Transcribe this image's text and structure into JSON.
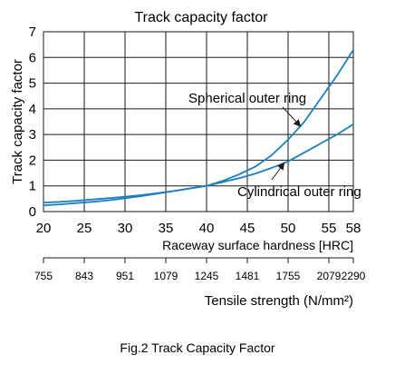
{
  "chart_data": {
    "type": "line",
    "title": "Track capacity factor",
    "ylabel": "Track capacity factor",
    "xlabel": "Raceway surface hardness [HRC]",
    "x2label": "Tensile strength (N/mm²)",
    "xlim": [
      20,
      58
    ],
    "ylim": [
      0,
      7
    ],
    "grid": true,
    "x_ticks": [
      "20",
      "25",
      "30",
      "35",
      "40",
      "45",
      "50",
      "55",
      "58"
    ],
    "x_tick_values": [
      20,
      25,
      30,
      35,
      40,
      45,
      50,
      55,
      58
    ],
    "y_ticks": [
      "0",
      "1",
      "2",
      "3",
      "4",
      "5",
      "6",
      "7"
    ],
    "secondary_axis": {
      "ticks": [
        "755",
        "843",
        "951",
        "1079",
        "1245",
        "1481",
        "1755",
        "2079",
        "2290"
      ],
      "positions_hrc": [
        20,
        25,
        30,
        35,
        40,
        45,
        50,
        55,
        58
      ]
    },
    "series": [
      {
        "name": "Spherical outer ring",
        "color": "#1d7fc0",
        "x": [
          20,
          22,
          24,
          26,
          28,
          30,
          32,
          34,
          36,
          38,
          40,
          42,
          44,
          46,
          48,
          50,
          52,
          54,
          56,
          58
        ],
        "y": [
          0.24,
          0.28,
          0.33,
          0.38,
          0.44,
          0.52,
          0.6,
          0.7,
          0.8,
          0.9,
          1.0,
          1.2,
          1.45,
          1.75,
          2.2,
          2.8,
          3.5,
          4.4,
          5.3,
          6.3
        ]
      },
      {
        "name": "Cylindrical outer ring",
        "color": "#1d7fc0",
        "x": [
          20,
          22,
          24,
          26,
          28,
          30,
          32,
          34,
          36,
          38,
          40,
          42,
          44,
          46,
          48,
          50,
          52,
          54,
          56,
          58
        ],
        "y": [
          0.35,
          0.38,
          0.42,
          0.47,
          0.52,
          0.58,
          0.64,
          0.72,
          0.8,
          0.9,
          1.0,
          1.15,
          1.3,
          1.48,
          1.7,
          1.95,
          2.3,
          2.65,
          3.0,
          3.4
        ]
      }
    ],
    "annotations": [
      {
        "text": "Spherical outer ring",
        "series_index": 0,
        "arrow_to_x": 51.5
      },
      {
        "text": "Cylindrical outer ring",
        "series_index": 1,
        "arrow_to_x": 49.5
      }
    ]
  },
  "caption": "Fig.2 Track Capacity Factor"
}
